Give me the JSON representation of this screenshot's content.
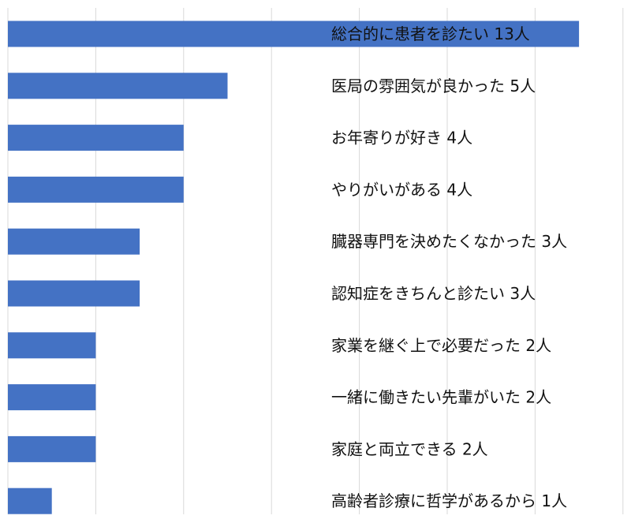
{
  "chart_data": {
    "type": "bar",
    "orientation": "horizontal",
    "grid": true,
    "xlim": [
      0,
      14
    ],
    "bar_color": "#4472C4",
    "categories": [
      "総合的に患者を診たい",
      "医局の雰囲気が良かった",
      "お年寄りが好き",
      "やりがいがある",
      "臓器専門を決めたくなかった",
      "認知症をきちんと診たい",
      "家業を継ぐ上で必要だった",
      "一緒に働きたい先輩がいた",
      "家庭と両立できる",
      "高齢者診療に哲学があるから"
    ],
    "values": [
      13,
      5,
      4,
      4,
      3,
      3,
      2,
      2,
      2,
      1
    ],
    "data_labels": [
      "総合的に患者を診たい 13人",
      "医局の雰囲気が良かった 5人",
      "お年寄りが好き 4人",
      "やりがいがある 4人",
      "臓器専門を決めたくなかった 3人",
      "認知症をきちんと診たい 3人",
      "家業を継ぐ上で必要だった 2人",
      "一緒に働きたい先輩がいた 2人",
      "家庭と両立できる 2人",
      "高齢者診療に哲学があるから 1人"
    ]
  }
}
